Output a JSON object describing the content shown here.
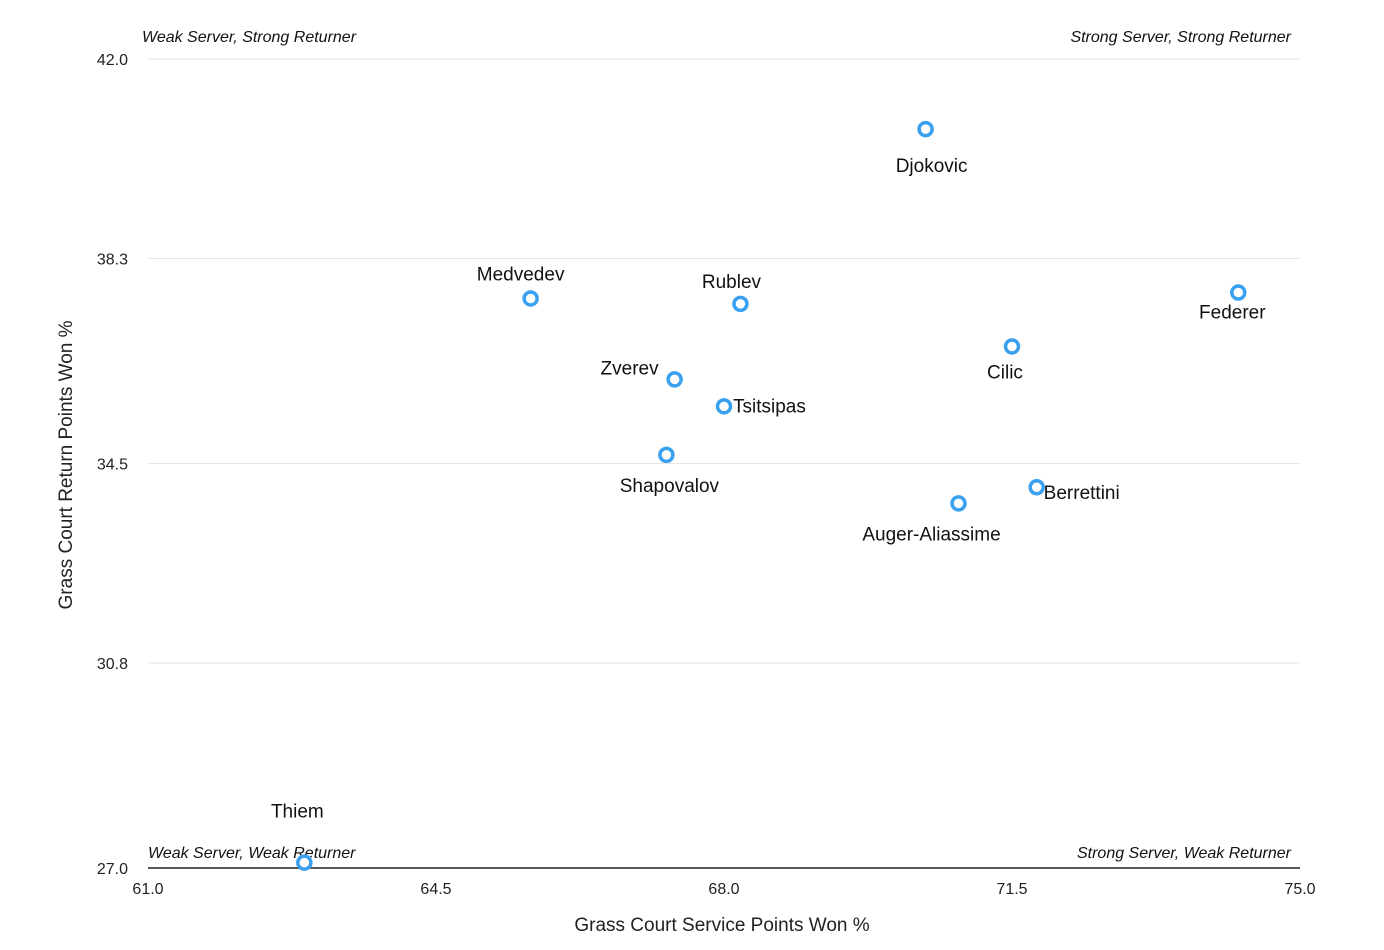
{
  "chart_data": {
    "type": "scatter",
    "xlabel": "Grass Court Service Points Won %",
    "ylabel": "Grass Court Return Points Won %",
    "xlim": [
      61.0,
      75.0
    ],
    "ylim": [
      27.0,
      42.0
    ],
    "x_ticks": [
      "61.0",
      "64.5",
      "68.0",
      "71.5",
      "75.0"
    ],
    "y_ticks": [
      "42.0",
      "38.3",
      "34.5",
      "30.8",
      "27.0"
    ],
    "grid": true,
    "quadrant_labels": {
      "top_left": "Weak Server, Strong Returner",
      "top_right": "Strong Server, Strong Returner",
      "bottom_left": "Weak Server, Weak Returner",
      "bottom_right": "Strong Server, Weak Returner"
    },
    "points": [
      {
        "name": "Djokovic",
        "x": 70.45,
        "y": 40.7
      },
      {
        "name": "Medvedev",
        "x": 65.65,
        "y": 37.56
      },
      {
        "name": "Rublev",
        "x": 68.2,
        "y": 37.46
      },
      {
        "name": "Federer",
        "x": 74.25,
        "y": 37.67
      },
      {
        "name": "Cilic",
        "x": 71.5,
        "y": 36.67
      },
      {
        "name": "Zverev",
        "x": 67.4,
        "y": 36.06
      },
      {
        "name": "Tsitsipas",
        "x": 68.0,
        "y": 35.56
      },
      {
        "name": "Shapovalov",
        "x": 67.3,
        "y": 34.66
      },
      {
        "name": "Berrettini",
        "x": 71.8,
        "y": 34.06
      },
      {
        "name": "Auger-Aliassime",
        "x": 70.85,
        "y": 33.76
      },
      {
        "name": "Thiem",
        "x": 62.9,
        "y": 27.1
      }
    ]
  }
}
